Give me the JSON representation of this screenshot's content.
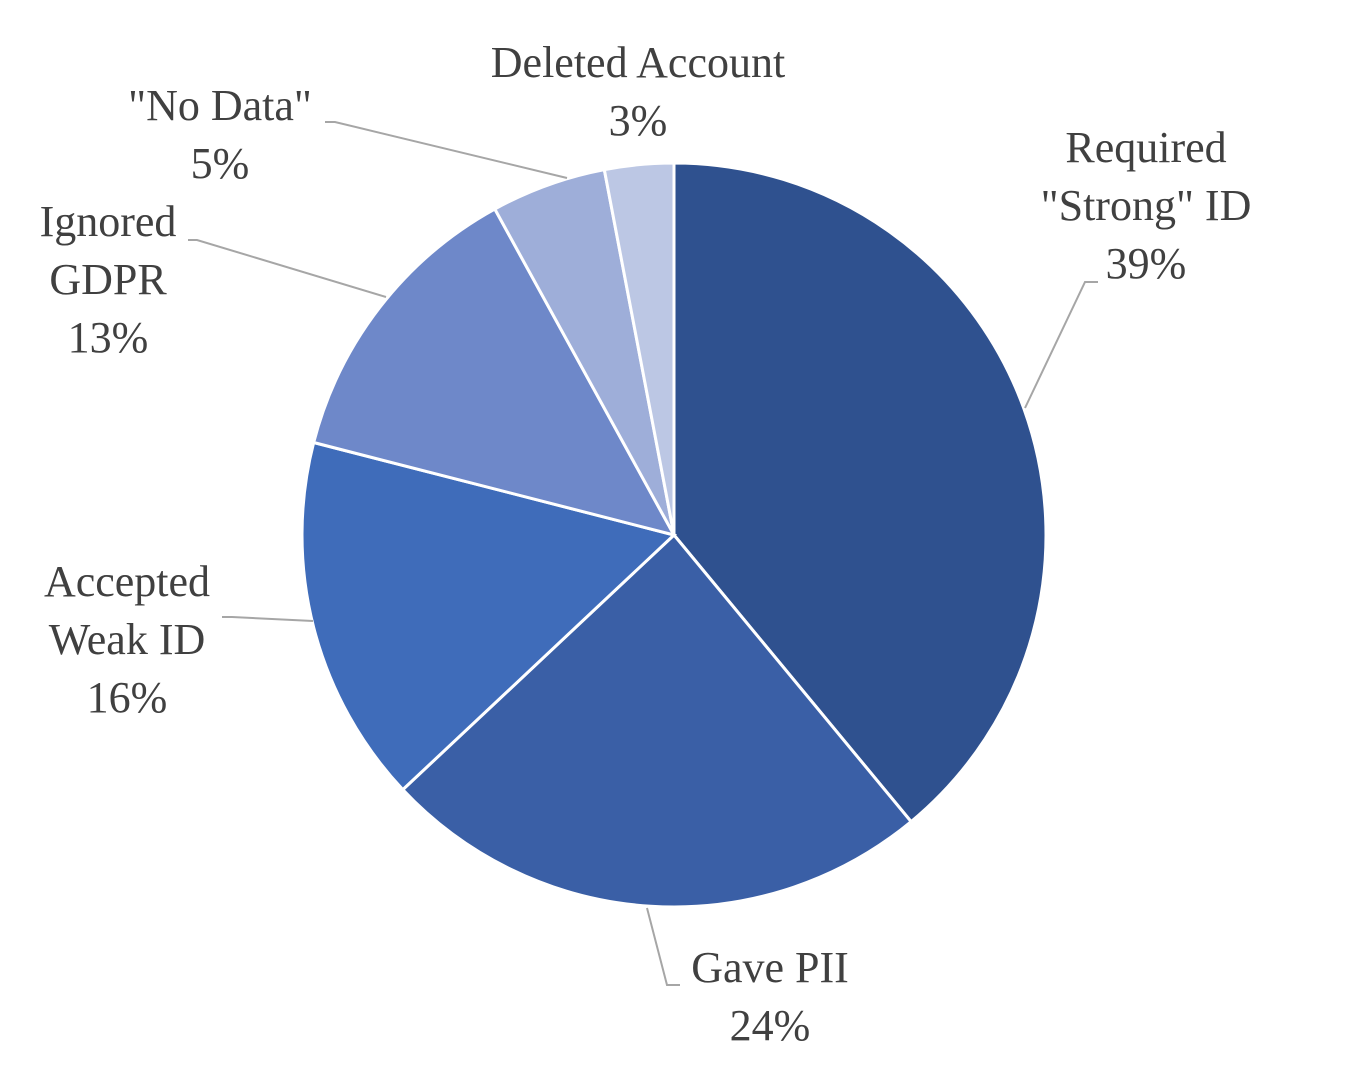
{
  "chart_data": {
    "type": "pie",
    "categories": [
      "Required \"Strong\" ID",
      "Gave PII",
      "Accepted Weak ID",
      "Ignored GDPR",
      "\"No Data\"",
      "Deleted Account"
    ],
    "values": [
      39,
      24,
      16,
      13,
      5,
      3
    ],
    "value_labels": [
      "39%",
      "24%",
      "16%",
      "13%",
      "5%",
      "3%"
    ],
    "colors": [
      "#2f518f",
      "#3a5fa6",
      "#3f6cba",
      "#6e88c9",
      "#9eaed9",
      "#bcc7e4"
    ]
  }
}
